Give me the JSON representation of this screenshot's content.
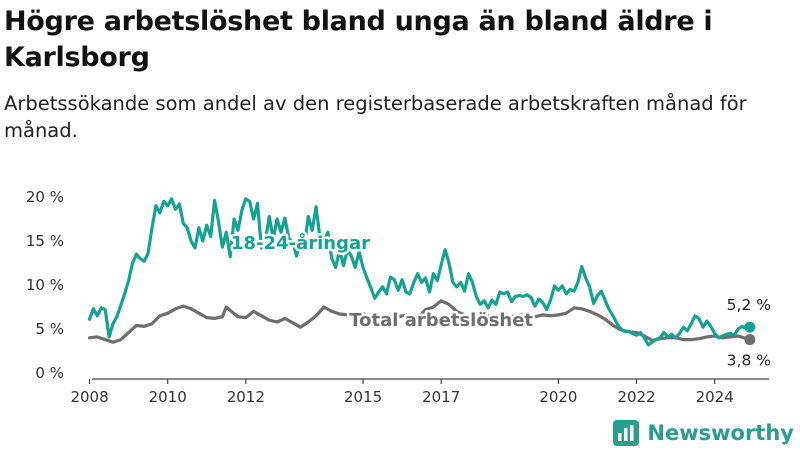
{
  "header": {
    "title": "Högre arbetslöshet bland unga än bland äldre i Karlsborg",
    "subtitle": "Arbetssökande som andel av den registerbaserade arbetskraften månad för månad."
  },
  "brand": {
    "name": "Newsworthy",
    "icon": "newsworthy-logo-icon"
  },
  "colors": {
    "youth": "#16a293",
    "total": "#6e6e6e",
    "axis": "#444444",
    "grid": "#e0e0e0"
  },
  "chart_data": {
    "type": "line",
    "title": "",
    "xlabel": "",
    "ylabel": "",
    "ylim": [
      0,
      20
    ],
    "xlim": [
      2007.5,
      2025.8
    ],
    "grid": false,
    "yticks": [
      0,
      5,
      10,
      15,
      20
    ],
    "ytick_labels": [
      "0 %",
      "5 %",
      "10 %",
      "15 %",
      "20 %"
    ],
    "xticks": [
      2008,
      2010,
      2012,
      2015,
      2017,
      2020,
      2022,
      2024
    ],
    "xtick_labels": [
      "2008",
      "2010",
      "2012",
      "2015",
      "2017",
      "2020",
      "2022",
      "2024"
    ],
    "series": [
      {
        "name": "18-24-åringar",
        "color": "#16a293",
        "end_label": "5,2 %",
        "points": [
          [
            2008.0,
            6.1
          ],
          [
            2008.1,
            7.3
          ],
          [
            2008.2,
            6.5
          ],
          [
            2008.3,
            7.4
          ],
          [
            2008.4,
            7.2
          ],
          [
            2008.5,
            4.1
          ],
          [
            2008.6,
            5.6
          ],
          [
            2008.7,
            6.4
          ],
          [
            2008.8,
            7.7
          ],
          [
            2008.9,
            9.0
          ],
          [
            2009.0,
            10.5
          ],
          [
            2009.1,
            12.5
          ],
          [
            2009.2,
            13.5
          ],
          [
            2009.3,
            13.0
          ],
          [
            2009.4,
            12.7
          ],
          [
            2009.5,
            13.6
          ],
          [
            2009.6,
            16.5
          ],
          [
            2009.7,
            19.0
          ],
          [
            2009.8,
            18.2
          ],
          [
            2009.9,
            19.5
          ],
          [
            2010.0,
            19.0
          ],
          [
            2010.1,
            19.8
          ],
          [
            2010.2,
            18.6
          ],
          [
            2010.3,
            19.2
          ],
          [
            2010.4,
            17.0
          ],
          [
            2010.5,
            16.5
          ],
          [
            2010.6,
            15.0
          ],
          [
            2010.7,
            14.2
          ],
          [
            2010.8,
            16.5
          ],
          [
            2010.9,
            15.0
          ],
          [
            2011.0,
            16.8
          ],
          [
            2011.1,
            15.5
          ],
          [
            2011.2,
            19.6
          ],
          [
            2011.3,
            17.2
          ],
          [
            2011.4,
            14.3
          ],
          [
            2011.5,
            16.0
          ],
          [
            2011.6,
            13.2
          ],
          [
            2011.7,
            17.5
          ],
          [
            2011.8,
            16.2
          ],
          [
            2011.9,
            18.5
          ],
          [
            2012.0,
            19.8
          ],
          [
            2012.1,
            19.5
          ],
          [
            2012.2,
            17.5
          ],
          [
            2012.3,
            19.3
          ],
          [
            2012.4,
            14.2
          ],
          [
            2012.5,
            15.0
          ],
          [
            2012.6,
            17.8
          ],
          [
            2012.7,
            15.2
          ],
          [
            2012.8,
            17.5
          ],
          [
            2012.9,
            16.0
          ],
          [
            2013.0,
            17.6
          ],
          [
            2013.1,
            15.3
          ],
          [
            2013.2,
            14.8
          ],
          [
            2013.3,
            13.3
          ],
          [
            2013.4,
            15.5
          ],
          [
            2013.5,
            14.5
          ],
          [
            2013.6,
            17.8
          ],
          [
            2013.7,
            16.2
          ],
          [
            2013.8,
            18.9
          ],
          [
            2013.9,
            15.2
          ],
          [
            2014.0,
            15.0
          ],
          [
            2014.1,
            16.0
          ],
          [
            2014.2,
            13.0
          ],
          [
            2014.3,
            12.0
          ],
          [
            2014.4,
            14.0
          ],
          [
            2014.5,
            12.2
          ],
          [
            2014.6,
            14.0
          ],
          [
            2014.7,
            13.3
          ],
          [
            2014.8,
            12.0
          ],
          [
            2014.9,
            13.8
          ],
          [
            2015.0,
            12.0
          ],
          [
            2015.1,
            10.8
          ],
          [
            2015.2,
            9.7
          ],
          [
            2015.3,
            8.5
          ],
          [
            2015.4,
            9.2
          ],
          [
            2015.5,
            9.8
          ],
          [
            2015.6,
            9.0
          ],
          [
            2015.7,
            10.9
          ],
          [
            2015.8,
            10.6
          ],
          [
            2015.9,
            9.4
          ],
          [
            2016.0,
            10.6
          ],
          [
            2016.1,
            9.2
          ],
          [
            2016.2,
            9.0
          ],
          [
            2016.3,
            10.3
          ],
          [
            2016.4,
            11.3
          ],
          [
            2016.5,
            10.3
          ],
          [
            2016.6,
            10.8
          ],
          [
            2016.7,
            9.2
          ],
          [
            2016.8,
            11.3
          ],
          [
            2016.9,
            10.5
          ],
          [
            2017.0,
            12.3
          ],
          [
            2017.1,
            14.0
          ],
          [
            2017.2,
            12.5
          ],
          [
            2017.3,
            10.3
          ],
          [
            2017.4,
            9.8
          ],
          [
            2017.5,
            10.3
          ],
          [
            2017.6,
            9.3
          ],
          [
            2017.7,
            11.3
          ],
          [
            2017.8,
            10.3
          ],
          [
            2017.9,
            8.7
          ],
          [
            2018.0,
            7.8
          ],
          [
            2018.1,
            8.2
          ],
          [
            2018.2,
            7.4
          ],
          [
            2018.3,
            8.3
          ],
          [
            2018.4,
            7.8
          ],
          [
            2018.5,
            9.2
          ],
          [
            2018.6,
            9.0
          ],
          [
            2018.7,
            9.2
          ],
          [
            2018.8,
            8.1
          ],
          [
            2018.9,
            8.7
          ],
          [
            2019.0,
            8.8
          ],
          [
            2019.1,
            8.7
          ],
          [
            2019.2,
            8.9
          ],
          [
            2019.3,
            8.6
          ],
          [
            2019.4,
            7.6
          ],
          [
            2019.5,
            8.4
          ],
          [
            2019.6,
            8.0
          ],
          [
            2019.7,
            7.2
          ],
          [
            2019.8,
            8.3
          ],
          [
            2019.9,
            9.9
          ],
          [
            2020.0,
            9.4
          ],
          [
            2020.1,
            9.9
          ],
          [
            2020.2,
            9.0
          ],
          [
            2020.3,
            9.5
          ],
          [
            2020.4,
            9.3
          ],
          [
            2020.5,
            10.3
          ],
          [
            2020.6,
            12.1
          ],
          [
            2020.7,
            10.8
          ],
          [
            2020.8,
            9.8
          ],
          [
            2020.9,
            7.9
          ],
          [
            2021.0,
            8.8
          ],
          [
            2021.1,
            9.3
          ],
          [
            2021.2,
            8.2
          ],
          [
            2021.3,
            7.2
          ],
          [
            2021.4,
            6.5
          ],
          [
            2021.5,
            5.6
          ],
          [
            2021.6,
            5.0
          ],
          [
            2021.7,
            4.7
          ],
          [
            2021.8,
            4.7
          ],
          [
            2021.9,
            4.5
          ],
          [
            2022.0,
            4.3
          ],
          [
            2022.1,
            4.6
          ],
          [
            2022.2,
            4.0
          ],
          [
            2022.3,
            3.2
          ],
          [
            2022.4,
            3.5
          ],
          [
            2022.5,
            3.8
          ],
          [
            2022.6,
            4.0
          ],
          [
            2022.7,
            4.6
          ],
          [
            2022.8,
            4.1
          ],
          [
            2022.9,
            4.4
          ],
          [
            2023.0,
            4.0
          ],
          [
            2023.1,
            4.5
          ],
          [
            2023.2,
            5.2
          ],
          [
            2023.3,
            4.8
          ],
          [
            2023.4,
            5.6
          ],
          [
            2023.5,
            6.5
          ],
          [
            2023.6,
            6.2
          ],
          [
            2023.7,
            5.2
          ],
          [
            2023.8,
            5.9
          ],
          [
            2023.9,
            5.3
          ],
          [
            2024.0,
            4.5
          ],
          [
            2024.1,
            4.0
          ],
          [
            2024.2,
            4.2
          ],
          [
            2024.3,
            4.4
          ],
          [
            2024.4,
            4.5
          ],
          [
            2024.5,
            4.3
          ],
          [
            2024.6,
            5.0
          ],
          [
            2024.7,
            5.3
          ],
          [
            2024.8,
            5.1
          ],
          [
            2024.9,
            5.2
          ]
        ]
      },
      {
        "name": "Total arbetslöshet",
        "color": "#6e6e6e",
        "end_label": "3,8 %",
        "points": [
          [
            2008.0,
            4.0
          ],
          [
            2008.2,
            4.1
          ],
          [
            2008.4,
            3.8
          ],
          [
            2008.6,
            3.5
          ],
          [
            2008.8,
            3.8
          ],
          [
            2009.0,
            4.6
          ],
          [
            2009.2,
            5.4
          ],
          [
            2009.4,
            5.3
          ],
          [
            2009.6,
            5.6
          ],
          [
            2009.8,
            6.5
          ],
          [
            2010.0,
            6.8
          ],
          [
            2010.2,
            7.3
          ],
          [
            2010.4,
            7.6
          ],
          [
            2010.6,
            7.3
          ],
          [
            2010.8,
            6.8
          ],
          [
            2011.0,
            6.3
          ],
          [
            2011.2,
            6.2
          ],
          [
            2011.4,
            6.4
          ],
          [
            2011.5,
            7.5
          ],
          [
            2011.6,
            7.1
          ],
          [
            2011.8,
            6.4
          ],
          [
            2012.0,
            6.3
          ],
          [
            2012.2,
            7.0
          ],
          [
            2012.4,
            6.5
          ],
          [
            2012.6,
            6.0
          ],
          [
            2012.8,
            5.8
          ],
          [
            2013.0,
            6.2
          ],
          [
            2013.2,
            5.7
          ],
          [
            2013.4,
            5.2
          ],
          [
            2013.6,
            5.8
          ],
          [
            2013.8,
            6.5
          ],
          [
            2014.0,
            7.5
          ],
          [
            2014.2,
            7.0
          ],
          [
            2014.4,
            6.7
          ],
          [
            2014.6,
            6.6
          ],
          [
            2014.8,
            6.4
          ],
          [
            2015.0,
            6.8
          ],
          [
            2015.2,
            6.1
          ],
          [
            2015.4,
            5.9
          ],
          [
            2015.6,
            6.0
          ],
          [
            2015.8,
            6.2
          ],
          [
            2016.0,
            6.5
          ],
          [
            2016.2,
            6.6
          ],
          [
            2016.4,
            6.2
          ],
          [
            2016.6,
            7.2
          ],
          [
            2016.8,
            7.5
          ],
          [
            2017.0,
            8.2
          ],
          [
            2017.2,
            7.8
          ],
          [
            2017.4,
            7.0
          ],
          [
            2017.6,
            6.6
          ],
          [
            2017.8,
            6.4
          ],
          [
            2018.0,
            6.5
          ],
          [
            2018.2,
            6.5
          ],
          [
            2018.4,
            6.3
          ],
          [
            2018.6,
            6.5
          ],
          [
            2018.8,
            6.4
          ],
          [
            2019.0,
            6.6
          ],
          [
            2019.2,
            6.5
          ],
          [
            2019.4,
            6.4
          ],
          [
            2019.6,
            6.6
          ],
          [
            2019.8,
            6.5
          ],
          [
            2020.0,
            6.6
          ],
          [
            2020.2,
            6.8
          ],
          [
            2020.4,
            7.4
          ],
          [
            2020.6,
            7.3
          ],
          [
            2020.8,
            7.0
          ],
          [
            2021.0,
            6.6
          ],
          [
            2021.2,
            6.1
          ],
          [
            2021.4,
            5.4
          ],
          [
            2021.6,
            4.9
          ],
          [
            2021.8,
            4.7
          ],
          [
            2022.0,
            4.6
          ],
          [
            2022.2,
            4.2
          ],
          [
            2022.4,
            3.7
          ],
          [
            2022.6,
            3.9
          ],
          [
            2022.8,
            4.0
          ],
          [
            2023.0,
            4.0
          ],
          [
            2023.2,
            3.8
          ],
          [
            2023.4,
            3.8
          ],
          [
            2023.6,
            3.9
          ],
          [
            2023.8,
            4.1
          ],
          [
            2024.0,
            4.2
          ],
          [
            2024.2,
            4.0
          ],
          [
            2024.4,
            4.1
          ],
          [
            2024.6,
            4.2
          ],
          [
            2024.9,
            3.8
          ]
        ]
      }
    ],
    "annotations": [
      {
        "text": "18-24-åringar",
        "series": "18-24-åringar",
        "x": 2013.4,
        "y": 14.8
      },
      {
        "text": "Total arbetslöshet",
        "series": "Total arbetslöshet",
        "x": 2017.0,
        "y": 6.0
      }
    ]
  }
}
